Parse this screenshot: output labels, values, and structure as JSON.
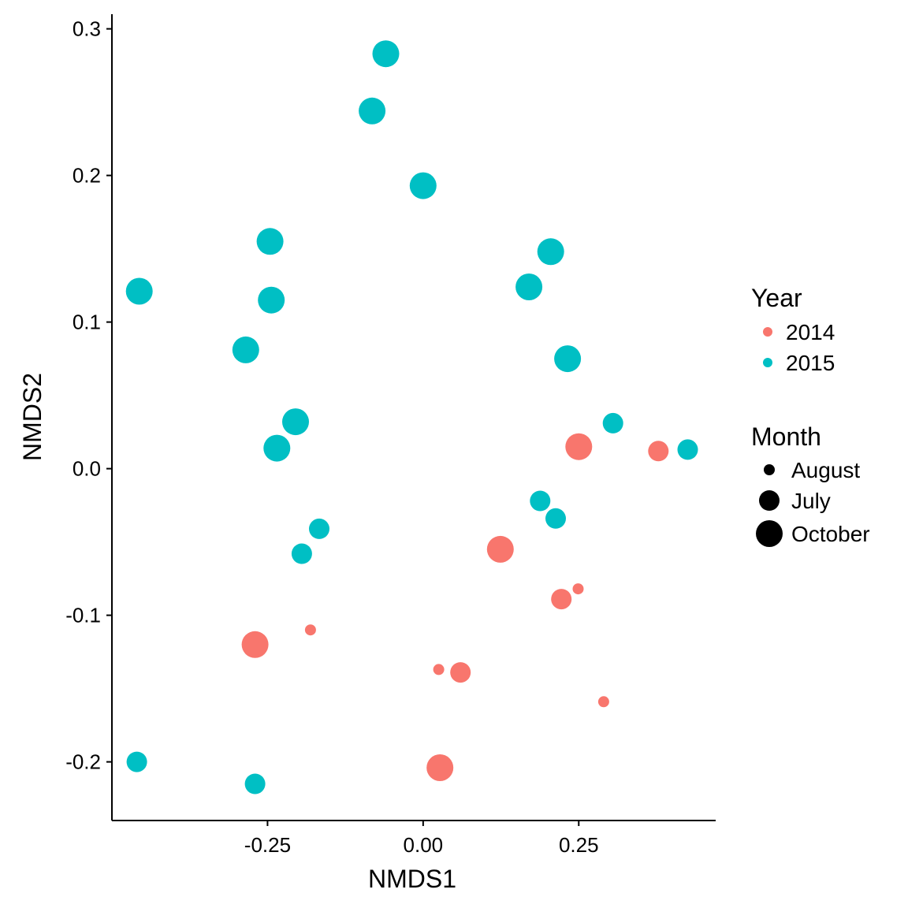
{
  "chart_data": {
    "type": "scatter",
    "xlabel": "NMDS1",
    "ylabel": "NMDS2",
    "xlim": [
      -0.5,
      0.47
    ],
    "ylim": [
      -0.24,
      0.31
    ],
    "x_ticks": [
      -0.25,
      0.0,
      0.25
    ],
    "x_tick_labels": [
      "-0.25",
      "0.00",
      "0.25"
    ],
    "y_ticks": [
      -0.2,
      -0.1,
      0.0,
      0.1,
      0.2,
      0.3
    ],
    "y_tick_labels": [
      "-0.2",
      "-0.1",
      "0.0",
      "0.1",
      "0.2",
      "0.3"
    ],
    "grid": false,
    "legend_position": "right",
    "colors": {
      "2014": "#F8766D",
      "2015": "#00BFC4"
    },
    "legend": {
      "year": {
        "title": "Year",
        "entries": [
          "2014",
          "2015"
        ]
      },
      "month": {
        "title": "Month",
        "entries": [
          "August",
          "July",
          "October"
        ]
      }
    },
    "series": [
      {
        "name": "2014",
        "color": "#F8766D",
        "points": [
          {
            "x": 0.25,
            "y": 0.015,
            "month": "October"
          },
          {
            "x": 0.378,
            "y": 0.012,
            "month": "July"
          },
          {
            "x": 0.124,
            "y": -0.055,
            "month": "October"
          },
          {
            "x": 0.222,
            "y": -0.089,
            "month": "July"
          },
          {
            "x": 0.249,
            "y": -0.082,
            "month": "August"
          },
          {
            "x": -0.27,
            "y": -0.12,
            "month": "October"
          },
          {
            "x": -0.181,
            "y": -0.11,
            "month": "August"
          },
          {
            "x": 0.025,
            "y": -0.137,
            "month": "August"
          },
          {
            "x": 0.06,
            "y": -0.139,
            "month": "July"
          },
          {
            "x": 0.29,
            "y": -0.159,
            "month": "August"
          },
          {
            "x": 0.027,
            "y": -0.204,
            "month": "October"
          }
        ]
      },
      {
        "name": "2015",
        "color": "#00BFC4",
        "points": [
          {
            "x": -0.06,
            "y": 0.283,
            "month": "October"
          },
          {
            "x": -0.082,
            "y": 0.244,
            "month": "October"
          },
          {
            "x": 0.0,
            "y": 0.193,
            "month": "October"
          },
          {
            "x": -0.246,
            "y": 0.155,
            "month": "October"
          },
          {
            "x": 0.205,
            "y": 0.148,
            "month": "October"
          },
          {
            "x": 0.17,
            "y": 0.124,
            "month": "October"
          },
          {
            "x": -0.456,
            "y": 0.121,
            "month": "October"
          },
          {
            "x": -0.244,
            "y": 0.115,
            "month": "October"
          },
          {
            "x": -0.285,
            "y": 0.081,
            "month": "October"
          },
          {
            "x": 0.232,
            "y": 0.075,
            "month": "October"
          },
          {
            "x": -0.205,
            "y": 0.032,
            "month": "October"
          },
          {
            "x": -0.235,
            "y": 0.014,
            "month": "October"
          },
          {
            "x": 0.305,
            "y": 0.031,
            "month": "July"
          },
          {
            "x": 0.425,
            "y": 0.013,
            "month": "July"
          },
          {
            "x": 0.188,
            "y": -0.022,
            "month": "July"
          },
          {
            "x": 0.213,
            "y": -0.034,
            "month": "July"
          },
          {
            "x": -0.167,
            "y": -0.041,
            "month": "July"
          },
          {
            "x": -0.195,
            "y": -0.058,
            "month": "July"
          },
          {
            "x": -0.46,
            "y": -0.2,
            "month": "July"
          },
          {
            "x": -0.27,
            "y": -0.215,
            "month": "July"
          }
        ]
      }
    ]
  }
}
